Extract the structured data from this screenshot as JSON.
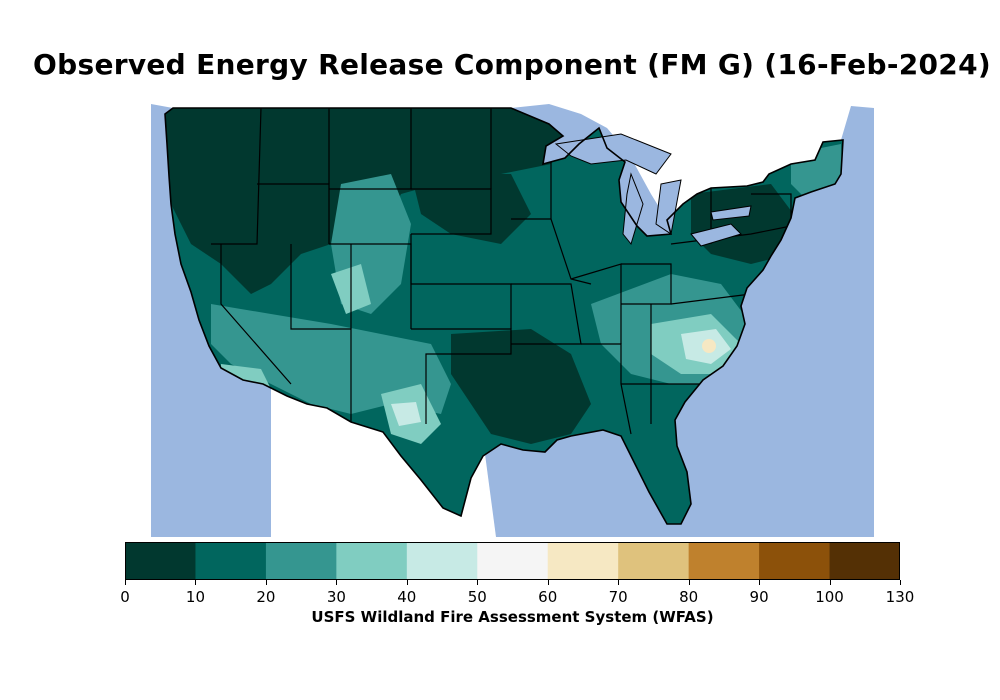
{
  "title": "Observed Energy Release Component (FM G) (16-Feb-2024)",
  "colorbar": {
    "label": "USFS Wildland Fire Assessment System (WFAS)",
    "ticks": [
      "0",
      "10",
      "20",
      "30",
      "40",
      "50",
      "60",
      "70",
      "80",
      "90",
      "100",
      "130"
    ],
    "colors": [
      "#01382f",
      "#01665e",
      "#359690",
      "#80cdc1",
      "#c7eae5",
      "#f5f5f5",
      "#f6e8c3",
      "#dfc27d",
      "#bf812d",
      "#8c510a",
      "#543005"
    ]
  },
  "map": {
    "region": "Contiguous United States",
    "ocean_color": "#9bb7e0",
    "land_outside_color": "#ffffff"
  }
}
